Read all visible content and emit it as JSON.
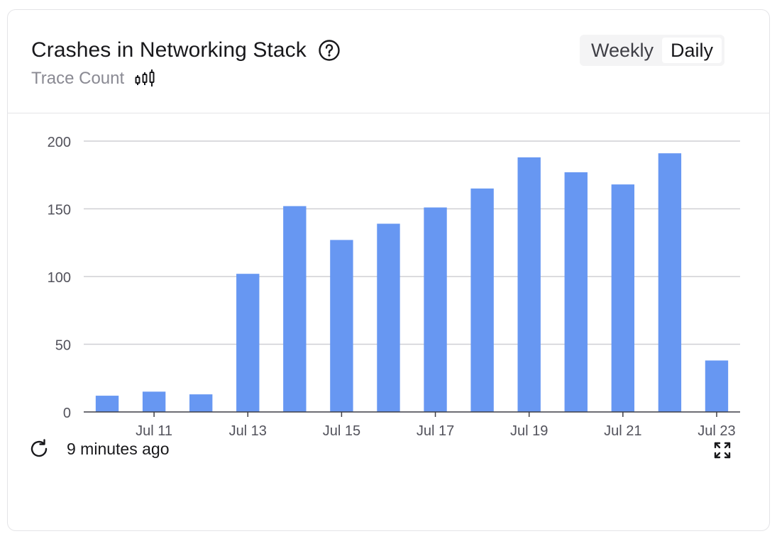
{
  "header": {
    "title": "Crashes in Networking Stack",
    "subtitle": "Trace Count",
    "help_icon": "question-circle-icon",
    "subtitle_icon": "candlestick-icon"
  },
  "toggle": {
    "options": [
      "Weekly",
      "Daily"
    ],
    "selected": "Daily"
  },
  "footer": {
    "updated_text": "9 minutes ago",
    "refresh_icon": "refresh-icon",
    "expand_icon": "expand-icon"
  },
  "colors": {
    "bar": "#6797f2",
    "grid": "#cfcfd4",
    "axis_text": "#52525b"
  },
  "chart_data": {
    "type": "bar",
    "title": "",
    "xlabel": "",
    "ylabel": "",
    "ylim": [
      0,
      200
    ],
    "yticks": [
      0,
      50,
      100,
      150,
      200
    ],
    "grid": true,
    "categories": [
      "Jul 10",
      "Jul 11",
      "Jul 12",
      "Jul 13",
      "Jul 14",
      "Jul 15",
      "Jul 16",
      "Jul 17",
      "Jul 18",
      "Jul 19",
      "Jul 20",
      "Jul 21",
      "Jul 22",
      "Jul 23"
    ],
    "tick_labels": [
      "",
      "Jul 11",
      "",
      "Jul 13",
      "",
      "Jul 15",
      "",
      "Jul 17",
      "",
      "Jul 19",
      "",
      "Jul 21",
      "",
      "Jul 23"
    ],
    "values": [
      12,
      15,
      13,
      102,
      152,
      127,
      139,
      151,
      165,
      188,
      177,
      168,
      191,
      38
    ]
  }
}
